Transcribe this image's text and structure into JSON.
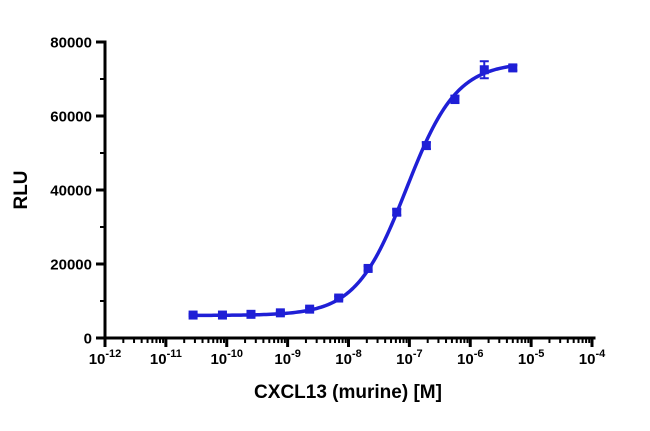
{
  "figure": {
    "kind": "dose-response-curve",
    "background": "#ffffff"
  },
  "chart_data": {
    "type": "scatter",
    "title": "",
    "xlabel": "CXCL13 (murine) [M]",
    "ylabel": "RLU",
    "x_scale": "log10",
    "xlim_log": [
      -12,
      -4
    ],
    "ylim": [
      0,
      80000
    ],
    "x_major_exponents": [
      -12,
      -11,
      -10,
      -9,
      -8,
      -7,
      -6,
      -5,
      -4
    ],
    "y_ticks": [
      0,
      20000,
      40000,
      60000,
      80000
    ],
    "y_minor_ticks": [
      10000,
      30000,
      50000,
      70000
    ],
    "grid": false,
    "legend": "none",
    "series": [
      {
        "name": "CXCL13 (murine)",
        "marker": "square",
        "color": "#1f1fd6",
        "x": [
          2.8e-11,
          8.5e-11,
          2.5e-10,
          7.6e-10,
          2.3e-09,
          6.9e-09,
          2.1e-08,
          6.2e-08,
          1.9e-07,
          5.6e-07,
          1.7e-06,
          5e-06
        ],
        "y": [
          6200,
          6200,
          6400,
          6800,
          7800,
          10800,
          18800,
          34000,
          52000,
          64500,
          72500,
          73000
        ],
        "sem": [
          300,
          300,
          300,
          350,
          400,
          450,
          600,
          800,
          900,
          1000,
          2300,
          700
        ]
      }
    ],
    "fit": {
      "model": "4PL-sigmoid",
      "bottom": 6100,
      "top": 74500,
      "log_ec50": -7.05,
      "hill": 1.05
    },
    "axis_color": "#000000",
    "accent_color": "#1f1fd6"
  }
}
